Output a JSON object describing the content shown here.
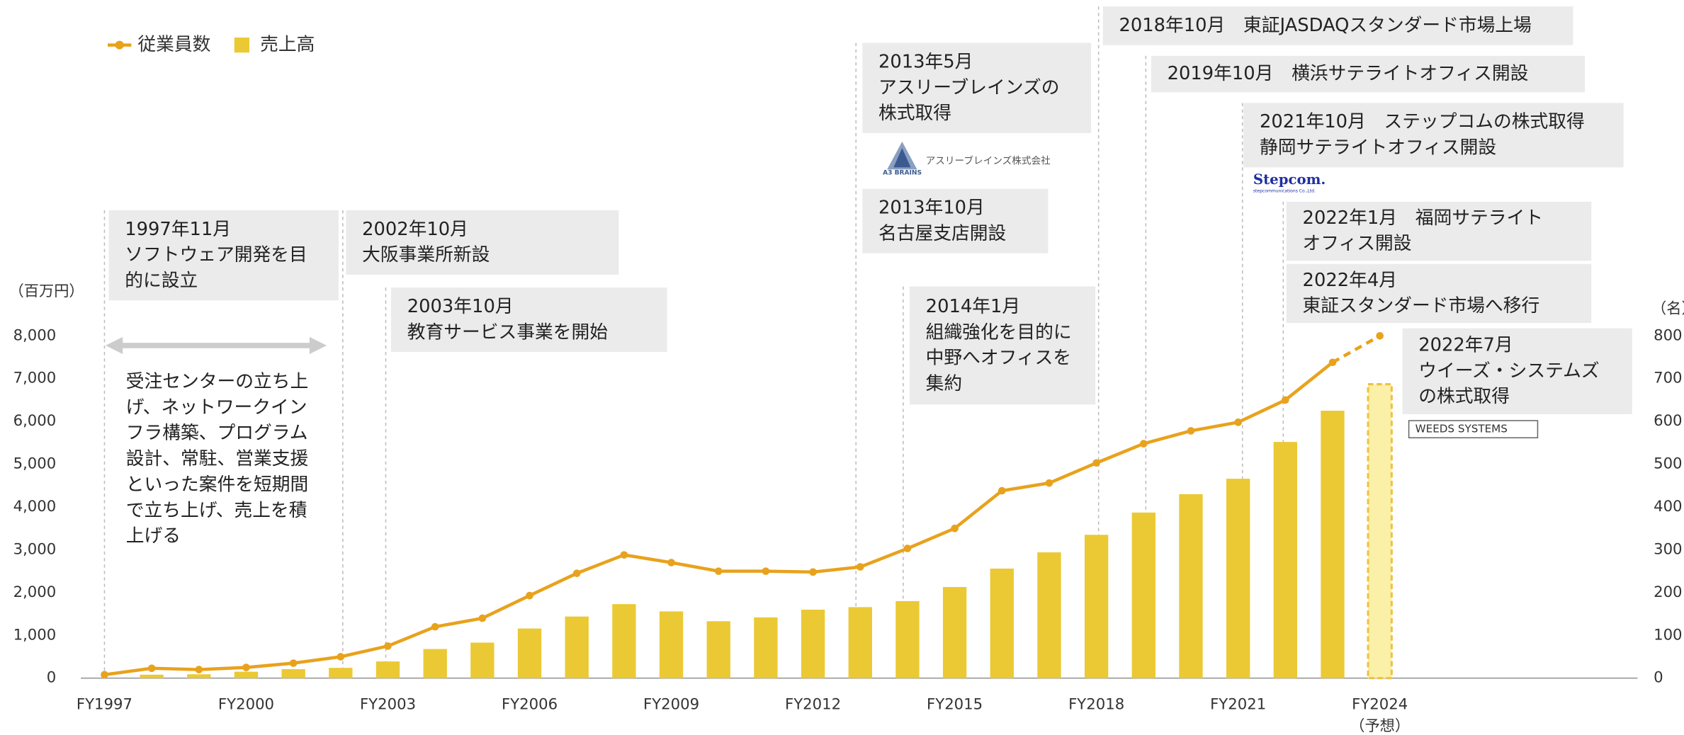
{
  "chart_data": {
    "type": "bar_line",
    "categories": [
      "FY1997",
      null,
      null,
      "FY2000",
      null,
      null,
      "FY2003",
      null,
      null,
      "FY2006",
      null,
      null,
      "FY2009",
      null,
      null,
      "FY2012",
      null,
      null,
      "FY2015",
      null,
      null,
      "FY2018",
      null,
      null,
      "FY2021",
      null,
      null,
      "FY2024"
    ],
    "forecast_label": "（予想）",
    "forecast_index": 27,
    "series": [
      {
        "name": "従業員数",
        "type": "line",
        "axis": "y2",
        "color": "#e8a21c",
        "values": [
          8,
          23,
          20,
          25,
          35,
          50,
          75,
          120,
          140,
          193,
          245,
          288,
          270,
          250,
          250,
          248,
          260,
          303,
          350,
          438,
          456,
          503,
          548,
          578,
          598,
          650,
          738,
          800
        ]
      },
      {
        "name": "売上高",
        "type": "bar",
        "axis": "y",
        "color": "#ebc934",
        "values": [
          null,
          80,
          90,
          150,
          210,
          240,
          390,
          680,
          830,
          1160,
          1440,
          1730,
          1560,
          1330,
          1420,
          1600,
          1660,
          1800,
          2130,
          2560,
          2940,
          3350,
          3870,
          4300,
          4660,
          5520,
          6250,
          6870
        ]
      }
    ],
    "ylabel": "（百万円）",
    "y2label": "（名）",
    "ylim": [
      0,
      8000
    ],
    "yticks": [
      0,
      {
        "value": 1000,
        "label": "1,000"
      },
      {
        "value": 2000,
        "label": "2,000"
      },
      {
        "value": 3000,
        "label": "3,000"
      },
      {
        "value": 4000,
        "label": "4,000"
      },
      {
        "value": 5000,
        "label": "5,000"
      },
      {
        "value": 6000,
        "label": "6,000"
      },
      {
        "value": 7000,
        "label": "7,000"
      },
      {
        "value": 8000,
        "label": "8,000"
      }
    ],
    "y2lim": [
      0,
      800
    ],
    "y2ticks": [
      0,
      100,
      200,
      300,
      400,
      500,
      600,
      700,
      800
    ],
    "legend": "top-left",
    "annotations": [
      {
        "lines": [
          "1997年11月",
          "ソフトウェア開発を目",
          "的に設立"
        ]
      },
      {
        "lines": [
          "2002年10月",
          "大阪事業所新設"
        ]
      },
      {
        "lines": [
          "2003年10月",
          "教育サービス事業を開始"
        ]
      },
      {
        "lines": [
          "2013年5月",
          "アスリーブレインズの",
          "株式取得"
        ]
      },
      {
        "lines": [
          "2013年10月",
          "名古屋支店開設"
        ]
      },
      {
        "lines": [
          "2014年1月",
          "組織強化を目的に",
          "中野へオフィスを",
          "集約"
        ]
      },
      {
        "lines": [
          "2018年10月　東証JASDAQスタンダード市場上場"
        ]
      },
      {
        "lines": [
          "2019年10月　横浜サテライトオフィス開設"
        ]
      },
      {
        "lines": [
          "2021年10月　ステップコムの株式取得",
          "静岡サテライトオフィス開設"
        ]
      },
      {
        "lines": [
          "2022年1月　福岡サテライト",
          "オフィス開設"
        ]
      },
      {
        "lines": [
          "2022年4月",
          "東証スタンダード市場へ移行"
        ]
      },
      {
        "lines": [
          "2022年7月",
          "ウイーズ・システムズ",
          "の株式取得"
        ]
      }
    ],
    "note_lines": [
      "受注センターの立ち上",
      "げ、ネットワークイン",
      "フラ構築、プログラム",
      "設計、常駐、営業支援",
      "といった案件を短期間",
      "で立ち上げ、売上を積",
      "上げる"
    ],
    "logos": [
      "A3 BRAINS",
      "アスリーブレインズ株式会社",
      "Stepcom.",
      "stepcommunications Co.,Ltd.",
      "WEEDS SYSTEMS"
    ]
  }
}
